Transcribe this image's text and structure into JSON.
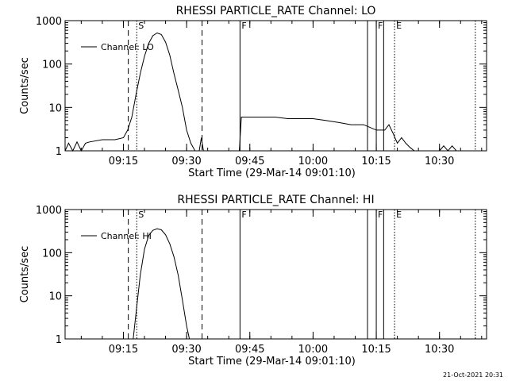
{
  "footer_timestamp": "21-Oct-2021 20:31",
  "chart_data": [
    {
      "type": "line",
      "title": "RHESSI PARTICLE_RATE Channel: LO",
      "xlabel": "Start Time (29-Mar-14 09:01:10)",
      "ylabel": "Counts/sec",
      "xlim": [
        "09:01:10",
        "10:41:10"
      ],
      "ylim": [
        1,
        1000
      ],
      "y_scale": "log",
      "x_ticks": [
        "09:15",
        "09:30",
        "09:45",
        "10:00",
        "10:15",
        "10:30"
      ],
      "y_ticks": [
        "1",
        "10",
        "100",
        "1000"
      ],
      "legend": {
        "entries": [
          "Channel: LO"
        ],
        "position": "top-left"
      },
      "series": [
        {
          "name": "Channel: LO",
          "x": [
            "09:01:10",
            "09:02:00",
            "09:03:00",
            "09:04:00",
            "09:05:00",
            "09:06:00",
            "09:07:00",
            "09:10:00",
            "09:13:00",
            "09:15:00",
            "09:16:00",
            "09:17:00",
            "09:18:00",
            "09:19:00",
            "09:20:00",
            "09:21:00",
            "09:22:00",
            "09:23:00",
            "09:24:00",
            "09:25:00",
            "09:26:00",
            "09:27:00",
            "09:28:00",
            "09:29:00",
            "09:30:00",
            "09:31:00",
            "09:32:00",
            "09:33:00",
            "09:33:30",
            "09:34:00",
            "09:34:30",
            "09:35:00",
            "09:36:00",
            "09:37:00",
            "09:38:00",
            "09:39:00",
            "09:40:00",
            "09:41:00",
            "09:42:00",
            "09:42:30",
            "09:43:00",
            "09:45:00",
            "09:48:00",
            "09:51:00",
            "09:54:00",
            "09:57:00",
            "10:00:00",
            "10:03:00",
            "10:06:00",
            "10:09:00",
            "10:12:00",
            "10:15:00",
            "10:16:00",
            "10:17:00",
            "10:18:00",
            "10:19:00",
            "10:20:00",
            "10:21:00",
            "10:22:00",
            "10:23:00",
            "10:24:00",
            "10:25:00",
            "10:26:00",
            "10:27:00",
            "10:28:00",
            "10:29:00",
            "10:30:00",
            "10:31:00",
            "10:32:00",
            "10:33:00",
            "10:34:00",
            "10:35:00"
          ],
          "y": [
            1,
            1.5,
            1,
            1.6,
            1,
            1.5,
            1.6,
            1.8,
            1.8,
            2,
            3,
            6,
            20,
            60,
            150,
            300,
            450,
            520,
            480,
            320,
            160,
            60,
            25,
            10,
            3,
            1.5,
            1,
            1,
            2,
            1,
            1,
            1,
            1,
            1,
            1,
            1,
            1,
            1,
            1,
            1,
            6,
            6,
            6,
            6,
            5.5,
            5.5,
            5.5,
            5,
            4.5,
            4,
            4,
            3,
            3,
            3,
            4,
            2.5,
            1.5,
            2,
            1.5,
            1.2,
            1,
            1,
            1,
            1,
            1,
            1,
            1,
            1.3,
            1,
            1.3,
            1,
            1
          ]
        }
      ],
      "markers": [
        {
          "type": "dashed",
          "x": "09:16:10"
        },
        {
          "type": "dotted",
          "x": "09:18:10",
          "label": "S"
        },
        {
          "type": "dashed",
          "x": "09:33:40"
        },
        {
          "type": "solid",
          "x": "09:42:40",
          "label": "F"
        },
        {
          "type": "solid",
          "x": "10:12:55"
        },
        {
          "type": "solid",
          "x": "10:15:00",
          "label": "F"
        },
        {
          "type": "solid",
          "x": "10:16:45"
        },
        {
          "type": "dotted",
          "x": "10:19:20",
          "label": "E"
        },
        {
          "type": "dotted",
          "x": "10:38:30"
        }
      ]
    },
    {
      "type": "line",
      "title": "RHESSI PARTICLE_RATE Channel: HI",
      "xlabel": "Start Time (29-Mar-14 09:01:10)",
      "ylabel": "Counts/sec",
      "xlim": [
        "09:01:10",
        "10:41:10"
      ],
      "ylim": [
        1,
        1000
      ],
      "y_scale": "log",
      "x_ticks": [
        "09:15",
        "09:30",
        "09:45",
        "10:00",
        "10:15",
        "10:30"
      ],
      "y_ticks": [
        "1",
        "10",
        "100",
        "1000"
      ],
      "legend": {
        "entries": [
          "Channel: HI"
        ],
        "position": "top-left"
      },
      "series": [
        {
          "name": "Channel: HI",
          "x": [
            "09:17:20",
            "09:18:00",
            "09:19:00",
            "09:20:00",
            "09:21:00",
            "09:22:00",
            "09:23:00",
            "09:24:00",
            "09:25:00",
            "09:26:00",
            "09:27:00",
            "09:28:00",
            "09:29:00",
            "09:30:00",
            "09:30:40"
          ],
          "y": [
            1,
            4,
            30,
            120,
            250,
            330,
            360,
            340,
            260,
            160,
            80,
            30,
            8,
            2,
            1
          ]
        }
      ],
      "markers": [
        {
          "type": "dashed",
          "x": "09:16:10"
        },
        {
          "type": "dotted",
          "x": "09:18:10",
          "label": "S"
        },
        {
          "type": "dashed",
          "x": "09:33:40"
        },
        {
          "type": "solid",
          "x": "09:42:40",
          "label": "F"
        },
        {
          "type": "solid",
          "x": "10:12:55"
        },
        {
          "type": "solid",
          "x": "10:15:00",
          "label": "F"
        },
        {
          "type": "solid",
          "x": "10:16:45"
        },
        {
          "type": "dotted",
          "x": "10:19:20",
          "label": "E"
        },
        {
          "type": "dotted",
          "x": "10:38:30"
        }
      ]
    }
  ]
}
